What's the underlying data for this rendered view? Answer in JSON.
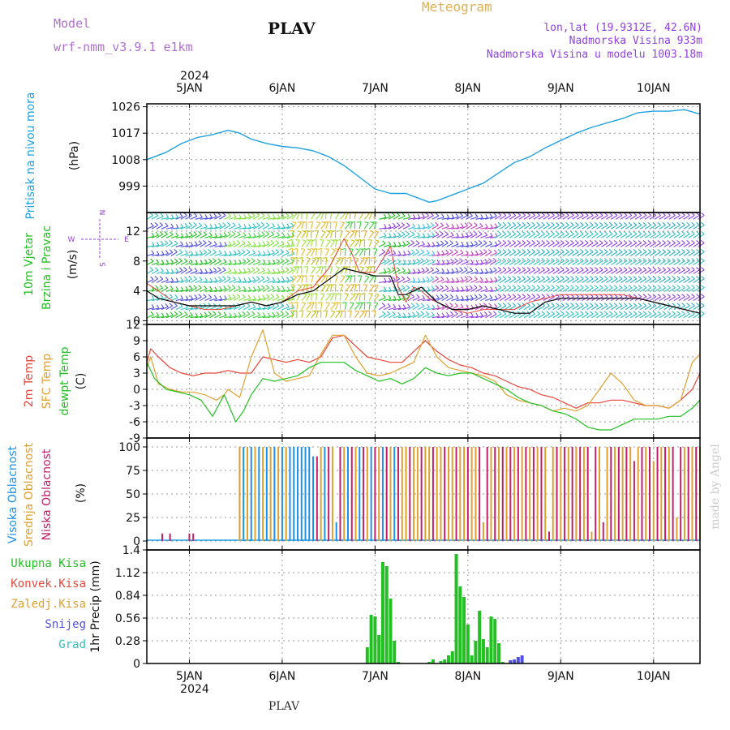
{
  "header": {
    "model_label": "Model",
    "model_name": "wrf-nmm_v3.9.1 e1km",
    "station": "PLAV",
    "title": "Meteogram",
    "lonlat": "lon,lat (19.9312E, 42.6N)",
    "altitude": "Nadmorska Visina 933m",
    "model_altitude": "Nadmorska Visina u modelu 1003.18m"
  },
  "footer": {
    "station": "PLAV",
    "watermark": "made by Angel"
  },
  "time_axis": {
    "year": "2024",
    "day_labels": [
      "5JAN",
      "6JAN",
      "7JAN",
      "8JAN",
      "9JAN",
      "10JAN"
    ],
    "start_hour": 13,
    "end_hour": 156
  },
  "colors": {
    "pressure": "#1ea0e0",
    "red": "#e8443a",
    "orange": "#e0a030",
    "green": "#22c022",
    "blue": "#1e90e8",
    "magenta": "#c0206a",
    "violet": "#9040e0",
    "purple": "#b070d0",
    "navy": "#5050e0",
    "cyan": "#30c0c0",
    "gold": "#e0b050"
  },
  "chart_data": [
    {
      "type": "line",
      "ylabel": [
        "Pritisak na nivou mora",
        "(hPa)"
      ],
      "yticks": [
        "1026",
        "1017",
        "1008",
        "999"
      ],
      "ytick_values": [
        1026,
        1017,
        1008,
        999
      ],
      "ylim": [
        990,
        1027
      ],
      "grid": true,
      "series": [
        {
          "color": "#1ea0e0",
          "x": [
            13,
            18,
            22,
            26,
            30,
            34,
            37,
            40,
            44,
            48,
            52,
            56,
            60,
            64,
            68,
            72,
            76,
            80,
            84,
            86,
            88,
            92,
            96,
            100,
            104,
            108,
            112,
            116,
            120,
            124,
            128,
            132,
            136,
            140,
            144,
            148,
            152,
            156
          ],
          "y": [
            1008,
            1010.5,
            1013.5,
            1015.5,
            1016.5,
            1018,
            1017,
            1015,
            1013.5,
            1012.5,
            1012,
            1011,
            1009,
            1006,
            1002,
            998,
            996.5,
            996.5,
            994.5,
            993.5,
            994,
            996,
            998,
            1000,
            1003.5,
            1007,
            1009,
            1012,
            1014.5,
            1017,
            1019,
            1020.5,
            1022,
            1024,
            1024.5,
            1024.5,
            1025,
            1023.5
          ]
        }
      ]
    },
    {
      "type": "line",
      "ylabel": [
        "10m Vjetar",
        "Brzina i Pravac",
        "(m/s)"
      ],
      "compass": {
        "n": "N",
        "s": "S",
        "e": "E",
        "w": "W"
      },
      "yticks": [
        "12",
        "8",
        "4",
        "0"
      ],
      "ytick_values": [
        12,
        8,
        4,
        0
      ],
      "ylim": [
        -0.5,
        14.5
      ],
      "grid": true,
      "series": [
        {
          "color": "#000000",
          "x": [
            13,
            16,
            20,
            24,
            28,
            32,
            36,
            40,
            44,
            48,
            52,
            56,
            60,
            64,
            68,
            72,
            76,
            78,
            80,
            82,
            84,
            86,
            88,
            92,
            96,
            100,
            104,
            108,
            112,
            116,
            120,
            124,
            128,
            132,
            136,
            140,
            144,
            148,
            152,
            156
          ],
          "y": [
            4,
            3,
            2.5,
            2,
            2,
            2,
            2,
            2.5,
            2,
            2.5,
            3.5,
            4,
            5.5,
            7,
            6.5,
            6,
            6,
            3.5,
            3.5,
            4,
            4.5,
            3.5,
            2.5,
            1.5,
            1.5,
            2,
            1.5,
            1,
            1,
            2.5,
            3,
            3,
            3,
            3,
            3,
            3,
            2.5,
            2,
            1.5,
            1
          ]
        },
        {
          "color": "#e8443a",
          "x": [
            13,
            16,
            20,
            24,
            28,
            32,
            36,
            40,
            44,
            48,
            52,
            56,
            60,
            62,
            64,
            66,
            68,
            72,
            76,
            78,
            80,
            82,
            84,
            86,
            88,
            92,
            96,
            100,
            104,
            108,
            112,
            116,
            120,
            124,
            128,
            132,
            136,
            140,
            144,
            148,
            152,
            156
          ],
          "y": [
            5,
            4,
            2.5,
            2,
            1.5,
            1.5,
            2,
            2.5,
            2,
            2.5,
            4,
            4.5,
            7,
            9,
            11,
            9,
            6.5,
            6.5,
            10,
            4.5,
            2.5,
            4.5,
            4,
            3,
            2.5,
            1.5,
            1,
            1.5,
            1.5,
            1.5,
            2.5,
            3,
            3.5,
            3.5,
            3.5,
            3.5,
            3.5,
            3,
            2.5,
            2,
            1.5,
            1
          ]
        }
      ]
    },
    {
      "type": "line",
      "ylabel": [
        "2m Temp",
        "SFC Temp",
        "dewpt Temp",
        "(C)"
      ],
      "yticks": [
        "12",
        "9",
        "6",
        "3",
        "0",
        "-3",
        "-6",
        "-9"
      ],
      "ytick_values": [
        12,
        9,
        6,
        3,
        0,
        -3,
        -6,
        -9
      ],
      "ylim": [
        -9,
        12
      ],
      "grid": true,
      "series": [
        {
          "name": "2m Temp",
          "color": "#e8443a",
          "x": [
            13,
            14,
            16,
            19,
            22,
            25,
            28,
            31,
            34,
            37,
            40,
            43,
            46,
            49,
            52,
            55,
            58,
            61,
            64,
            67,
            70,
            73,
            76,
            79,
            82,
            85,
            88,
            91,
            94,
            97,
            100,
            103,
            106,
            109,
            112,
            115,
            118,
            121,
            124,
            127,
            130,
            133,
            136,
            139,
            142,
            145,
            148,
            151,
            154,
            156
          ],
          "y": [
            5,
            7.5,
            6,
            4,
            3,
            2.5,
            3,
            3,
            3.5,
            3,
            3,
            6,
            5.5,
            5,
            5.5,
            5,
            6,
            9.5,
            10,
            8,
            6,
            5.5,
            5,
            5,
            7,
            9,
            7,
            5.5,
            4.5,
            4,
            3,
            2.5,
            1.5,
            0.5,
            0,
            -1,
            -1.5,
            -2.5,
            -3.5,
            -2.5,
            -2.5,
            -2,
            -2,
            -2.5,
            -3,
            -3,
            -3.5,
            -2,
            0,
            3
          ]
        },
        {
          "name": "SFC Temp",
          "color": "#e0a030",
          "x": [
            13,
            14,
            16,
            19,
            22,
            25,
            28,
            31,
            33,
            34,
            37,
            40,
            43,
            46,
            49,
            52,
            55,
            58,
            61,
            64,
            67,
            70,
            73,
            76,
            79,
            82,
            85,
            88,
            91,
            94,
            97,
            100,
            103,
            106,
            109,
            112,
            115,
            118,
            121,
            124,
            127,
            130,
            133,
            136,
            139,
            142,
            145,
            148,
            151,
            154,
            156
          ],
          "y": [
            4,
            6,
            1,
            0,
            -0.5,
            -0.5,
            -1,
            -2,
            -1,
            0,
            -1.5,
            6,
            11,
            3,
            1.5,
            2,
            2.5,
            6.5,
            10,
            10,
            6,
            3,
            2.5,
            3,
            4,
            5,
            10,
            6,
            4,
            3.5,
            3,
            2.5,
            1.5,
            -1,
            -2,
            -2.5,
            -3,
            -4,
            -3.5,
            -4,
            -3,
            0,
            3,
            1,
            -2,
            -3,
            -3,
            -3.5,
            -2,
            5,
            6.5
          ]
        },
        {
          "name": "dewpt Temp",
          "color": "#22c022",
          "x": [
            13,
            15,
            18,
            21,
            24,
            27,
            30,
            33,
            36,
            38,
            40,
            43,
            46,
            49,
            52,
            55,
            58,
            61,
            64,
            67,
            70,
            73,
            76,
            79,
            82,
            85,
            88,
            91,
            94,
            97,
            100,
            103,
            106,
            109,
            112,
            115,
            118,
            121,
            124,
            127,
            130,
            133,
            136,
            139,
            142,
            145,
            148,
            151,
            154,
            156
          ],
          "y": [
            5,
            2,
            0,
            -0.5,
            -1,
            -2,
            -5,
            -1,
            -6,
            -4,
            -1,
            2,
            1.5,
            2,
            2.5,
            4,
            5,
            5,
            5,
            3.5,
            2.5,
            1.5,
            2,
            1,
            2,
            4,
            3,
            2.5,
            3,
            3,
            2,
            1,
            0,
            -1.5,
            -2.5,
            -3,
            -4,
            -4.5,
            -5.5,
            -7,
            -7.5,
            -7.5,
            -6.5,
            -5.5,
            -5.5,
            -5.5,
            -5,
            -5,
            -3.5,
            -2
          ]
        }
      ]
    },
    {
      "type": "bar",
      "ylabel": [
        "Visoka Oblacnost",
        "Srednja Oblacnost",
        "Niska Oblacnost",
        "(%)"
      ],
      "yticks": [
        "100",
        "75",
        "50",
        "25",
        "0"
      ],
      "ytick_values": [
        100,
        75,
        50,
        25,
        0
      ],
      "ylim": [
        0,
        100
      ],
      "grid": true
    },
    {
      "type": "bar",
      "ylabel": "1hr Precip (mm)",
      "legend": [
        "Ukupna Kisa",
        "Konvek.Kisa",
        "Zaledj.Kisa",
        "Snijeg",
        "Grad"
      ],
      "legend_colors": [
        "#22c022",
        "#e8443a",
        "#e0a030",
        "#5050e0",
        "#30c0c0"
      ],
      "yticks": [
        "1.4",
        "1.12",
        "0.84",
        "0.56",
        "0.28",
        "0"
      ],
      "ytick_values": [
        1.4,
        1.12,
        0.84,
        0.56,
        0.28,
        0
      ],
      "ylim": [
        0,
        1.4
      ],
      "grid": true,
      "series": [
        {
          "name": "Ukupna Kisa",
          "color": "#22c022",
          "x": [
            70,
            71,
            72,
            73,
            74,
            75,
            76,
            77,
            78,
            86,
            87,
            89,
            90,
            91,
            92,
            93,
            94,
            95,
            96,
            97,
            98,
            99,
            100,
            101,
            102,
            103,
            104,
            105
          ],
          "values": [
            0.2,
            0.6,
            0.58,
            0.35,
            1.25,
            1.2,
            0.8,
            0.28,
            0.02,
            0.02,
            0.05,
            0.03,
            0.05,
            0.1,
            0.15,
            1.35,
            0.95,
            0.82,
            0.48,
            0.1,
            0.28,
            0.65,
            0.3,
            0.2,
            0.58,
            0.55,
            0.25,
            0.02
          ]
        },
        {
          "name": "Snijeg",
          "color": "#5050e0",
          "x": [
            107,
            108,
            109,
            110
          ],
          "values": [
            0.04,
            0.05,
            0.08,
            0.1
          ]
        }
      ]
    }
  ]
}
